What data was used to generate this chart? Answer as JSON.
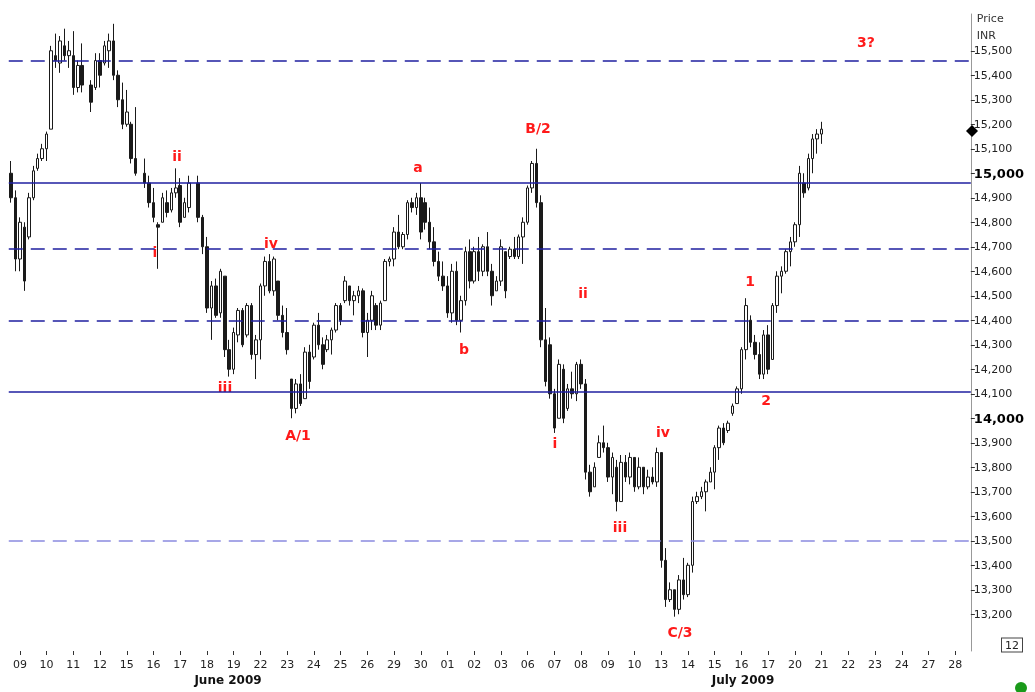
{
  "chart_data": {
    "type": "candlestick",
    "ylabel": "Price INR",
    "color": "#1a1a1a",
    "categories": [
      null,
      null,
      "09",
      null,
      null,
      null,
      null,
      null,
      "10",
      null,
      null,
      null,
      null,
      null,
      "11",
      null,
      null,
      null,
      null,
      null,
      "12",
      null,
      null,
      null,
      null,
      null,
      "15",
      null,
      null,
      null,
      null,
      null,
      "16",
      null,
      null,
      null,
      null,
      null,
      "17",
      null,
      null,
      null,
      null,
      null,
      "18",
      null,
      null,
      null,
      null,
      null,
      "19",
      null,
      null,
      null,
      null,
      null,
      "22",
      null,
      null,
      null,
      null,
      null,
      "23",
      null,
      null,
      null,
      null,
      null,
      "24",
      null,
      null,
      null,
      null,
      null,
      "25",
      null,
      null,
      null,
      null,
      null,
      "26",
      null,
      null,
      null,
      null,
      null,
      "29",
      null,
      null,
      null,
      null,
      null,
      "30",
      null,
      null,
      null,
      null,
      null,
      "01",
      null,
      null,
      null,
      null,
      null,
      "02",
      null,
      null,
      null,
      null,
      null,
      "03",
      null,
      null,
      null,
      null,
      null,
      "06",
      null,
      null,
      null,
      null,
      null,
      "07",
      null,
      null,
      null,
      null,
      null,
      "08",
      null,
      null,
      null,
      null,
      null,
      "09",
      null,
      null,
      null,
      null,
      null,
      "10",
      null,
      null,
      null,
      null,
      null,
      "13",
      null,
      null,
      null,
      null,
      null,
      "14",
      null,
      null,
      null,
      null,
      null,
      "15",
      null,
      null,
      null,
      null,
      null,
      "16",
      null,
      null,
      null,
      null,
      null,
      "17",
      null,
      null,
      null,
      null,
      null,
      "20",
      null,
      null,
      null,
      null,
      null,
      "21",
      null,
      null,
      null,
      null,
      null,
      "22",
      null,
      null,
      null,
      null,
      null,
      "23",
      null,
      null,
      null,
      null,
      null,
      "24",
      null,
      null,
      null,
      null,
      null,
      "27",
      null,
      null,
      null,
      null,
      null,
      "28",
      null,
      null,
      null
    ],
    "ylim": [
      13050,
      15650
    ],
    "yticks": [
      {
        "value": 13200,
        "label": "13,200"
      },
      {
        "value": 13300,
        "label": "13,300"
      },
      {
        "value": 13400,
        "label": "13,400"
      },
      {
        "value": 13500,
        "label": "13,500"
      },
      {
        "value": 13600,
        "label": "13,600"
      },
      {
        "value": 13700,
        "label": "13,700"
      },
      {
        "value": 13800,
        "label": "13,800"
      },
      {
        "value": 13900,
        "label": "13,900"
      },
      {
        "value": 14000,
        "label": "14,000"
      },
      {
        "value": 14100,
        "label": "14,100"
      },
      {
        "value": 14200,
        "label": "14,200"
      },
      {
        "value": 14300,
        "label": "14,300"
      },
      {
        "value": 14400,
        "label": "14,400"
      },
      {
        "value": 14500,
        "label": "14,500"
      },
      {
        "value": 14600,
        "label": "14,600"
      },
      {
        "value": 14700,
        "label": "14,700"
      },
      {
        "value": 14800,
        "label": "14,800"
      },
      {
        "value": 14900,
        "label": "14,900"
      },
      {
        "value": 15000,
        "label": "15,000"
      },
      {
        "value": 15100,
        "label": "15,100"
      },
      {
        "value": 15200,
        "label": "15,200"
      },
      {
        "value": 15300,
        "label": "15,300"
      },
      {
        "value": 15400,
        "label": "15,400"
      },
      {
        "value": 15500,
        "label": "15,500"
      }
    ],
    "ohlc": [
      [
        15000,
        15050,
        14880,
        14900
      ],
      [
        14900,
        14930,
        14600,
        14650
      ],
      [
        14650,
        14820,
        14600,
        14800
      ],
      [
        14780,
        14800,
        14520,
        14560
      ],
      [
        14740,
        14920,
        14730,
        14900
      ],
      [
        14900,
        15030,
        14890,
        15010
      ],
      [
        15020,
        15080,
        15010,
        15060
      ],
      [
        15060,
        15120,
        15050,
        15100
      ],
      [
        15100,
        15170,
        15050,
        15160
      ],
      [
        15180,
        15520,
        15180,
        15500
      ],
      [
        15480,
        15570,
        15430,
        15460
      ],
      [
        15450,
        15560,
        15410,
        15540
      ],
      [
        15520,
        15590,
        15460,
        15480
      ],
      [
        15480,
        15540,
        15430,
        15500
      ],
      [
        15480,
        15580,
        15320,
        15350
      ],
      [
        15350,
        15460,
        15330,
        15440
      ],
      [
        15440,
        15530,
        15330,
        15360
      ],
      null,
      [
        15360,
        15380,
        15250,
        15290
      ],
      [
        15350,
        15490,
        15340,
        15460
      ],
      [
        15460,
        15490,
        15350,
        15400
      ],
      [
        15450,
        15540,
        15440,
        15520
      ],
      [
        15500,
        15570,
        15430,
        15540
      ],
      [
        15540,
        15610,
        15380,
        15400
      ],
      [
        15400,
        15420,
        15270,
        15300
      ],
      [
        15300,
        15370,
        15180,
        15200
      ],
      [
        15200,
        15340,
        15190,
        15250
      ],
      [
        15200,
        15210,
        15040,
        15060
      ],
      [
        15060,
        15270,
        14990,
        15000
      ],
      null,
      [
        15000,
        15060,
        14940,
        14960
      ],
      [
        14960,
        14990,
        14860,
        14880
      ],
      [
        14880,
        14940,
        14800,
        14820
      ],
      [
        14790,
        14800,
        14610,
        14780
      ],
      [
        14800,
        14920,
        14800,
        14900
      ],
      [
        14880,
        14930,
        14820,
        14840
      ],
      [
        14850,
        14940,
        14840,
        14920
      ],
      [
        14920,
        15020,
        14900,
        14940
      ],
      [
        14950,
        14980,
        14780,
        14800
      ],
      [
        14820,
        14900,
        14820,
        14880
      ],
      [
        14860,
        14990,
        14840,
        14960
      ],
      null,
      [
        14960,
        14990,
        14800,
        14820
      ],
      [
        14820,
        14830,
        14670,
        14700
      ],
      [
        14700,
        14740,
        14430,
        14450
      ],
      [
        14450,
        14560,
        14320,
        14540
      ],
      [
        14540,
        14570,
        14410,
        14420
      ],
      [
        14430,
        14610,
        14410,
        14600
      ],
      [
        14580,
        14580,
        14250,
        14280
      ],
      [
        14280,
        14320,
        14170,
        14200
      ],
      [
        14200,
        14370,
        14180,
        14350
      ],
      [
        14340,
        14450,
        14310,
        14440
      ],
      [
        14440,
        14450,
        14290,
        14300
      ],
      [
        14340,
        14470,
        14330,
        14460
      ],
      [
        14460,
        14470,
        14240,
        14260
      ],
      [
        14260,
        14340,
        14160,
        14320
      ],
      [
        14320,
        14550,
        14240,
        14540
      ],
      [
        14540,
        14660,
        14500,
        14640
      ],
      [
        14640,
        14670,
        14510,
        14520
      ],
      [
        14520,
        14660,
        14500,
        14650
      ],
      [
        14560,
        14560,
        14400,
        14420
      ],
      [
        14420,
        14460,
        14330,
        14350
      ],
      [
        14350,
        14450,
        14260,
        14280
      ],
      [
        14160,
        14160,
        14000,
        14040
      ],
      [
        14040,
        14160,
        14020,
        14140
      ],
      [
        14140,
        14180,
        14050,
        14060
      ],
      [
        14080,
        14290,
        14080,
        14270
      ],
      [
        14270,
        14300,
        14120,
        14150
      ],
      [
        14250,
        14390,
        14240,
        14380
      ],
      [
        14380,
        14430,
        14280,
        14300
      ],
      [
        14300,
        14330,
        14200,
        14220
      ],
      [
        14280,
        14340,
        14270,
        14320
      ],
      [
        14320,
        14370,
        14260,
        14360
      ],
      [
        14360,
        14470,
        14350,
        14460
      ],
      [
        14460,
        14470,
        14380,
        14400
      ],
      [
        14480,
        14580,
        14470,
        14560
      ],
      [
        14540,
        14540,
        14460,
        14480
      ],
      [
        14480,
        14520,
        14420,
        14500
      ],
      [
        14500,
        14540,
        14470,
        14520
      ],
      [
        14520,
        14530,
        14330,
        14350
      ],
      [
        14350,
        14430,
        14250,
        14400
      ],
      [
        14400,
        14520,
        14360,
        14500
      ],
      [
        14460,
        14470,
        14360,
        14380
      ],
      [
        14380,
        14480,
        14360,
        14470
      ],
      [
        14480,
        14650,
        14480,
        14640
      ],
      [
        14640,
        14660,
        14620,
        14650
      ],
      [
        14650,
        14780,
        14620,
        14760
      ],
      [
        14760,
        14830,
        14690,
        14700
      ],
      [
        14700,
        14760,
        14690,
        14750
      ],
      [
        14750,
        14890,
        14730,
        14880
      ],
      [
        14880,
        14900,
        14840,
        14860
      ],
      [
        14860,
        14920,
        14830,
        14900
      ],
      [
        14900,
        14960,
        14730,
        14760
      ],
      [
        14880,
        14900,
        14770,
        14800
      ],
      [
        14800,
        14860,
        14690,
        14720
      ],
      [
        14720,
        14780,
        14620,
        14640
      ],
      [
        14640,
        14680,
        14560,
        14580
      ],
      [
        14580,
        14640,
        14520,
        14540
      ],
      [
        14540,
        14580,
        14410,
        14430
      ],
      [
        14430,
        14630,
        14390,
        14600
      ],
      [
        14600,
        14640,
        14380,
        14400
      ],
      [
        14400,
        14500,
        14350,
        14480
      ],
      [
        14480,
        14700,
        14460,
        14680
      ],
      [
        14680,
        14730,
        14530,
        14560
      ],
      [
        14560,
        14700,
        14550,
        14680
      ],
      [
        14680,
        14740,
        14560,
        14600
      ],
      [
        14600,
        14710,
        14580,
        14700
      ],
      [
        14700,
        14760,
        14580,
        14600
      ],
      [
        14600,
        14630,
        14460,
        14500
      ],
      [
        14520,
        14580,
        14520,
        14560
      ],
      [
        14560,
        14730,
        14540,
        14700
      ],
      [
        14680,
        14680,
        14490,
        14520
      ],
      [
        14660,
        14700,
        14650,
        14690
      ],
      [
        14690,
        14740,
        14650,
        14660
      ],
      [
        14660,
        14750,
        14650,
        14740
      ],
      [
        14740,
        14820,
        14630,
        14800
      ],
      [
        14800,
        14950,
        14790,
        14940
      ],
      [
        14940,
        15050,
        14920,
        15040
      ],
      [
        15040,
        15100,
        14860,
        14880
      ],
      [
        14880,
        14910,
        14290,
        14320
      ],
      [
        14320,
        14450,
        14130,
        14150
      ],
      [
        14300,
        14330,
        14080,
        14100
      ],
      [
        14100,
        14120,
        13940,
        13960
      ],
      [
        14000,
        14240,
        14000,
        14220
      ],
      [
        14200,
        14220,
        13980,
        14000
      ],
      [
        14040,
        14140,
        14030,
        14120
      ],
      [
        14120,
        14190,
        14080,
        14100
      ],
      [
        14100,
        14230,
        14070,
        14220
      ],
      [
        14220,
        14240,
        14120,
        14140
      ],
      [
        14140,
        14160,
        13750,
        13780
      ],
      [
        13780,
        13810,
        13680,
        13700
      ],
      [
        13720,
        13820,
        13720,
        13800
      ],
      [
        13840,
        13930,
        13840,
        13900
      ],
      [
        13900,
        13970,
        13860,
        13880
      ],
      [
        13880,
        13900,
        13740,
        13760
      ],
      [
        13760,
        13860,
        13690,
        13840
      ],
      [
        13800,
        13830,
        13620,
        13660
      ],
      [
        13660,
        13850,
        13660,
        13820
      ],
      [
        13820,
        13850,
        13740,
        13760
      ],
      [
        13760,
        13860,
        13730,
        13840
      ],
      [
        13840,
        13840,
        13700,
        13720
      ],
      [
        13720,
        13840,
        13710,
        13800
      ],
      [
        13800,
        13800,
        13690,
        13720
      ],
      [
        13720,
        13790,
        13710,
        13760
      ],
      [
        13760,
        13800,
        13730,
        13740
      ],
      [
        13740,
        13880,
        13720,
        13860
      ],
      [
        13860,
        13860,
        13390,
        13420
      ],
      [
        13420,
        13470,
        13230,
        13260
      ],
      [
        13260,
        13330,
        13250,
        13300
      ],
      [
        13300,
        13300,
        13190,
        13220
      ],
      [
        13220,
        13360,
        13200,
        13340
      ],
      [
        13340,
        13430,
        13260,
        13280
      ],
      [
        13280,
        13410,
        13270,
        13400
      ],
      [
        13400,
        13680,
        13370,
        13660
      ],
      [
        13660,
        13700,
        13650,
        13680
      ],
      [
        13680,
        13720,
        13670,
        13700
      ],
      [
        13700,
        13750,
        13620,
        13740
      ],
      [
        13740,
        13800,
        13740,
        13780
      ],
      [
        13780,
        13890,
        13710,
        13880
      ],
      [
        13880,
        13970,
        13830,
        13960
      ],
      [
        13960,
        13980,
        13890,
        13900
      ],
      [
        13950,
        13990,
        13940,
        13980
      ],
      [
        14020,
        14060,
        14010,
        14050
      ],
      [
        14060,
        14130,
        14060,
        14120
      ],
      [
        14120,
        14290,
        14100,
        14280
      ],
      [
        14280,
        14490,
        14240,
        14460
      ],
      [
        14400,
        14420,
        14290,
        14310
      ],
      [
        14310,
        14340,
        14240,
        14260
      ],
      [
        14260,
        14310,
        14160,
        14180
      ],
      [
        14180,
        14360,
        14160,
        14340
      ],
      [
        14340,
        14380,
        14180,
        14200
      ],
      [
        14240,
        14470,
        14240,
        14460
      ],
      [
        14460,
        14600,
        14430,
        14580
      ],
      [
        14580,
        14620,
        14510,
        14600
      ],
      [
        14600,
        14690,
        14590,
        14680
      ],
      [
        14680,
        14740,
        14620,
        14720
      ],
      [
        14720,
        14800,
        14700,
        14790
      ],
      [
        14790,
        15030,
        14740,
        15000
      ],
      [
        14960,
        15000,
        14900,
        14920
      ],
      [
        14940,
        15080,
        14930,
        15060
      ],
      [
        15060,
        15160,
        15000,
        15140
      ],
      [
        15140,
        15180,
        15080,
        15160
      ],
      [
        15160,
        15210,
        15120,
        15180
      ],
      null,
      null,
      null,
      null,
      null,
      null,
      null,
      null,
      null,
      null,
      null,
      null,
      null,
      null,
      null,
      null,
      null,
      null,
      null,
      null,
      null,
      null,
      null,
      null,
      null,
      null,
      null,
      null,
      null,
      null,
      null,
      null,
      null
    ],
    "ref_lines": [
      {
        "axis": "y",
        "value": 15460,
        "color": "#1f1fa0",
        "line_style": "dashed"
      },
      {
        "axis": "y",
        "value": 14960,
        "color": "#1f1fa0",
        "line_style": "solid"
      },
      {
        "axis": "y",
        "value": 14690,
        "color": "#1f1fa0",
        "line_style": "dashed"
      },
      {
        "axis": "y",
        "value": 14400,
        "color": "#1f1fa0",
        "line_style": "dashed"
      },
      {
        "axis": "y",
        "value": 14110,
        "color": "#1f1fa0",
        "line_style": "solid"
      },
      {
        "axis": "y",
        "value": 13500,
        "color": "#8a8ae0",
        "line_style": "dashed"
      }
    ],
    "annotations": [
      "ii",
      "i",
      "iv",
      "iii",
      "A/1",
      "a",
      "b",
      "B/2",
      "i",
      "ii",
      "iii",
      "iv",
      "C/3",
      "1",
      "2",
      "3?",
      "June 2009",
      "July 2009",
      "12"
    ],
    "grid": false
  }
}
